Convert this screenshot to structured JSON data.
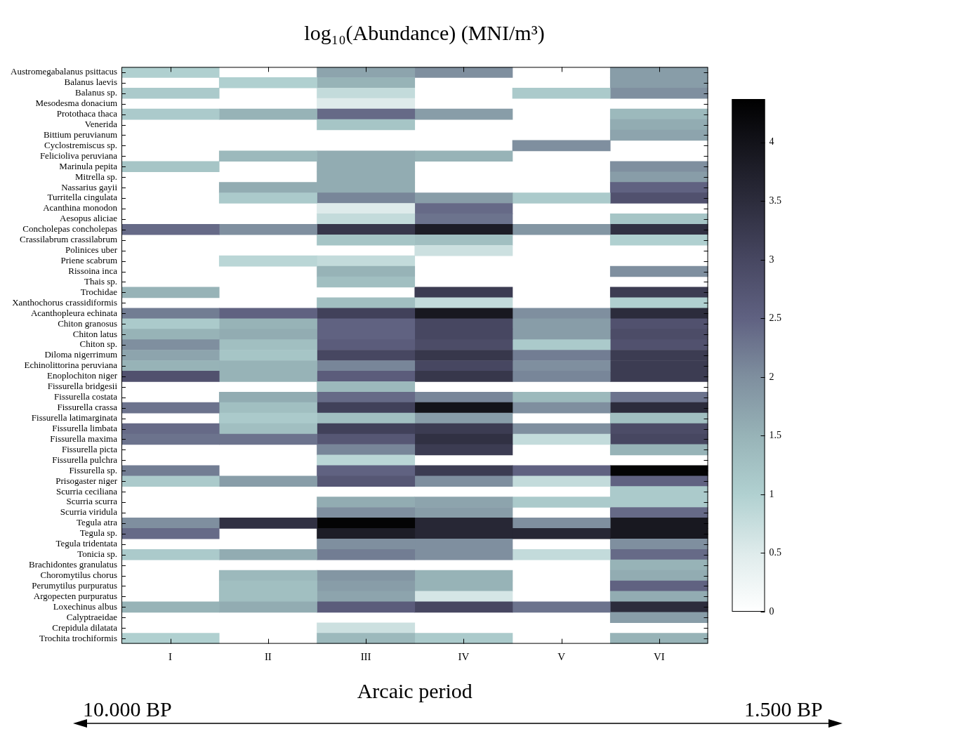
{
  "chart_data": {
    "type": "heatmap",
    "title": "log₁₀(Abundance) (MNI/m³)",
    "x_label": "Arcaic period",
    "categories": [
      "I",
      "II",
      "III",
      "IV",
      "V",
      "VI"
    ],
    "rows": [
      "Austromegabalanus psittacus",
      "Balanus laevis",
      "Balanus sp.",
      "Mesodesma donacium",
      "Protothaca thaca",
      "Venerida",
      "Bittium peruvianum",
      "Cyclostremiscus sp.",
      "Felicioliva peruviana",
      "Marinula pepita",
      "Mitrella sp.",
      "Nassarius gayii",
      "Turritella cingulata",
      "Acanthina monodon",
      "Aesopus aliciae",
      "Concholepas concholepas",
      "Crassilabrum crassilabrum",
      "Polinices uber",
      "Priene scabrum",
      "Rissoina inca",
      "Thais sp.",
      "Trochidae",
      "Xanthochorus crassidiformis",
      "Acanthopleura echinata",
      "Chiton granosus",
      "Chiton latus",
      "Chiton sp.",
      "Diloma nigerrimum",
      "Echinolittorina peruviana",
      "Enoplochiton niger",
      "Fissurella bridgesii",
      "Fissurella costata",
      "Fissurella crassa",
      "Fissurella latimarginata",
      "Fissurella limbata",
      "Fissurella maxima",
      "Fissurella picta",
      "Fissurella pulchra",
      "Fissurella sp.",
      "Prisogaster niger",
      "Scurria ceciliana",
      "Scurria scurra",
      "Scurria viridula",
      "Tegula atra",
      "Tegula sp.",
      "Tegula tridentata",
      "Tonicia sp.",
      "Brachidontes granulatus",
      "Choromytilus chorus",
      "Perumytilus purpuratus",
      "Argopecten purpuratus",
      "Loxechinus albus",
      "Calyptraeidae",
      "Crepidula dilatata",
      "Trochita trochiformis"
    ],
    "cells": [
      [
        1.0,
        null,
        1.7,
        2.0,
        null,
        1.8
      ],
      [
        null,
        1.0,
        1.5,
        null,
        null,
        1.8
      ],
      [
        1.1,
        null,
        0.8,
        null,
        1.1,
        2.0
      ],
      [
        null,
        null,
        0.5,
        null,
        null,
        null
      ],
      [
        1.1,
        1.5,
        2.4,
        1.8,
        null,
        1.4
      ],
      [
        null,
        null,
        1.2,
        null,
        null,
        1.6
      ],
      [
        null,
        null,
        null,
        null,
        null,
        1.7
      ],
      [
        null,
        null,
        null,
        null,
        2.0,
        null
      ],
      [
        null,
        1.4,
        1.6,
        1.5,
        null,
        null
      ],
      [
        1.2,
        null,
        1.6,
        null,
        null,
        2.0
      ],
      [
        null,
        null,
        1.6,
        null,
        null,
        1.8
      ],
      [
        null,
        1.6,
        1.6,
        null,
        null,
        2.5
      ],
      [
        null,
        1.1,
        2.1,
        1.8,
        1.1,
        2.8
      ],
      [
        null,
        null,
        0.5,
        2.4,
        null,
        null
      ],
      [
        null,
        null,
        0.8,
        2.3,
        null,
        1.2
      ],
      [
        2.4,
        2.0,
        3.3,
        3.8,
        1.9,
        3.4
      ],
      [
        null,
        null,
        1.2,
        1.3,
        null,
        1.0
      ],
      [
        null,
        null,
        null,
        0.7,
        null,
        null
      ],
      [
        null,
        0.9,
        0.8,
        null,
        null,
        null
      ],
      [
        null,
        null,
        1.5,
        null,
        null,
        2.0
      ],
      [
        null,
        null,
        1.3,
        null,
        null,
        null
      ],
      [
        1.5,
        null,
        null,
        3.2,
        null,
        3.2
      ],
      [
        null,
        null,
        1.3,
        0.8,
        null,
        1.0
      ],
      [
        2.2,
        2.5,
        3.1,
        3.9,
        2.0,
        3.5
      ],
      [
        1.1,
        1.5,
        2.5,
        3.0,
        1.8,
        2.8
      ],
      [
        1.5,
        1.6,
        2.5,
        3.0,
        1.8,
        2.9
      ],
      [
        2.0,
        1.3,
        2.6,
        2.9,
        1.1,
        2.8
      ],
      [
        1.7,
        1.2,
        3.0,
        3.3,
        2.2,
        3.2
      ],
      [
        1.5,
        1.5,
        2.1,
        3.0,
        2.0,
        3.2
      ],
      [
        2.8,
        1.5,
        2.6,
        3.3,
        2.1,
        3.2
      ],
      [
        null,
        null,
        1.4,
        null,
        null,
        null
      ],
      [
        null,
        1.6,
        2.4,
        2.1,
        1.4,
        2.3
      ],
      [
        2.3,
        1.3,
        3.1,
        4.0,
        2.0,
        3.5
      ],
      [
        null,
        1.1,
        1.3,
        1.8,
        null,
        1.3
      ],
      [
        2.4,
        1.3,
        3.1,
        3.2,
        2.0,
        2.9
      ],
      [
        2.3,
        2.3,
        2.7,
        3.4,
        0.8,
        3.0
      ],
      [
        null,
        null,
        2.1,
        3.2,
        null,
        1.5
      ],
      [
        null,
        null,
        0.9,
        null,
        null,
        null
      ],
      [
        2.2,
        null,
        2.5,
        3.2,
        2.5,
        4.3
      ],
      [
        1.1,
        1.8,
        2.7,
        2.0,
        0.8,
        2.5
      ],
      [
        null,
        null,
        null,
        null,
        null,
        1.1
      ],
      [
        null,
        null,
        1.6,
        1.7,
        1.1,
        1.1
      ],
      [
        null,
        null,
        2.0,
        1.8,
        null,
        2.4
      ],
      [
        2.0,
        3.4,
        4.3,
        3.6,
        2.0,
        3.9
      ],
      [
        2.4,
        null,
        3.8,
        3.6,
        3.6,
        3.9
      ],
      [
        null,
        null,
        2.0,
        2.0,
        null,
        2.0
      ],
      [
        1.1,
        1.6,
        2.2,
        2.0,
        0.8,
        2.4
      ],
      [
        null,
        null,
        null,
        null,
        null,
        1.5
      ],
      [
        null,
        1.4,
        1.9,
        1.5,
        null,
        1.6
      ],
      [
        null,
        1.3,
        1.8,
        1.5,
        null,
        2.5
      ],
      [
        null,
        1.3,
        1.7,
        0.6,
        null,
        1.6
      ],
      [
        1.5,
        1.6,
        2.6,
        3.0,
        2.3,
        3.5
      ],
      [
        null,
        null,
        null,
        null,
        null,
        1.8
      ],
      [
        null,
        null,
        0.7,
        null,
        null,
        null
      ],
      [
        1.0,
        null,
        1.4,
        1.1,
        null,
        1.5
      ]
    ],
    "colorbar": {
      "range": [
        0,
        4.37
      ],
      "ticks": [
        0,
        0.5,
        1,
        1.5,
        2,
        2.5,
        3,
        3.5,
        4
      ]
    },
    "annotations": [
      "10.000 BP",
      "1.500 BP"
    ]
  }
}
